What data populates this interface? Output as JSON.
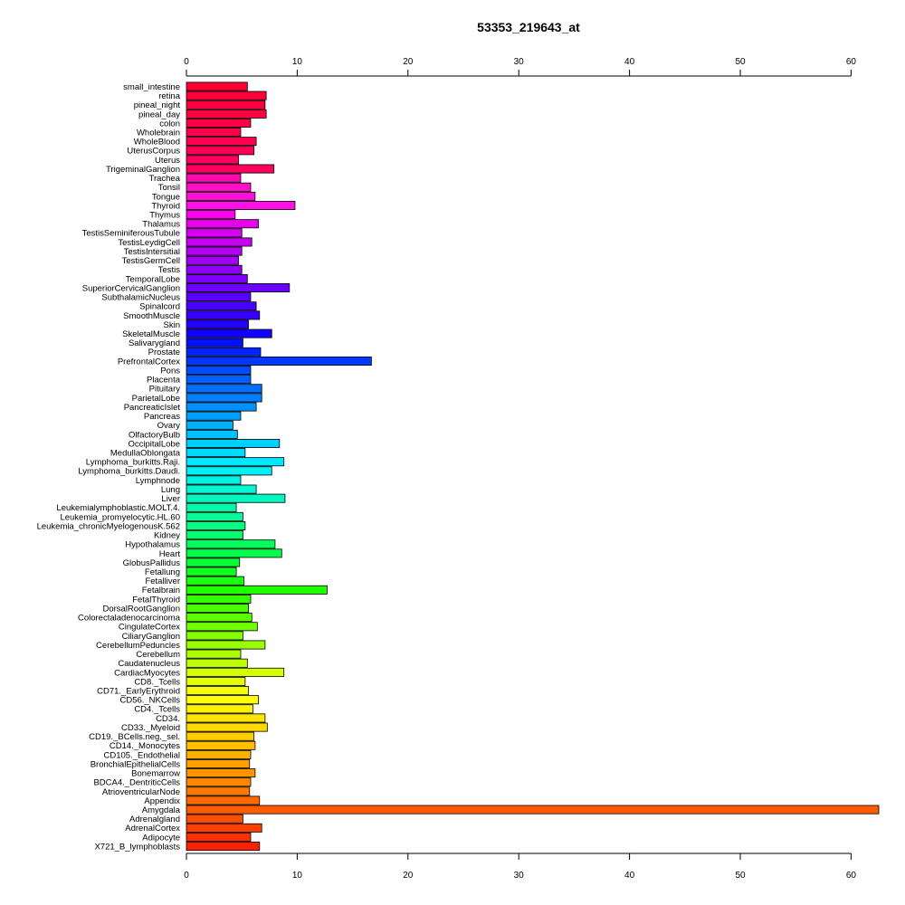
{
  "chart_data": {
    "type": "bar",
    "orientation": "horizontal",
    "title": "53353_219643_at",
    "xlabel": "",
    "ylabel": "",
    "xlim": [
      0,
      62.5
    ],
    "xticks": [
      0,
      10,
      20,
      30,
      40,
      50,
      60
    ],
    "xtick_labels": [
      "0",
      "10",
      "20",
      "30",
      "40",
      "50",
      "60"
    ],
    "grid": false,
    "categories": [
      "small_intestine",
      "retina",
      "pineal_night",
      "pineal_day",
      "colon",
      "Wholebrain",
      "WholeBlood",
      "UterusCorpus",
      "Uterus",
      "TrigeminalGanglion",
      "Trachea",
      "Tonsil",
      "Tongue",
      "Thyroid",
      "Thymus",
      "Thalamus",
      "TestisSeminiferousTubule",
      "TestisLeydigCell",
      "TestisIntersitial",
      "TestisGermCell",
      "Testis",
      "TemporalLobe",
      "SuperiorCervicalGanglion",
      "SubthalamicNucleus",
      "Spinalcord",
      "SmoothMuscle",
      "Skin",
      "SkeletalMuscle",
      "Salivarygland",
      "Prostate",
      "PrefrontalCortex",
      "Pons",
      "Placenta",
      "Pituitary",
      "ParietalLobe",
      "PancreaticIslet",
      "Pancreas",
      "Ovary",
      "OlfactoryBulb",
      "OccipitalLobe",
      "MedullaOblongata",
      "Lymphoma_burkitts.Raji.",
      "Lymphoma_burkitts.Daudi.",
      "Lymphnode",
      "Lung",
      "Liver",
      "Leukemialymphoblastic.MOLT.4.",
      "Leukemia_promyelocytic.HL.60",
      "Leukemia_chronicMyelogenousK.562",
      "Kidney",
      "Hypothalamus",
      "Heart",
      "GlobusPallidus",
      "Fetallung",
      "Fetalliver",
      "Fetalbrain",
      "FetalThyroid",
      "DorsalRootGanglion",
      "Colorectaladenocarcinoma",
      "CingulateCortex",
      "CiliaryGanglion",
      "CerebellumPeduncles",
      "Cerebellum",
      "Caudatenucleus",
      "CardiacMyocytes",
      "CD8._Tcells",
      "CD71._EarlyErythroid",
      "CD56._NKCells",
      "CD4._Tcells",
      "CD34.",
      "CD33._Myeloid",
      "CD19._BCells.neg._sel.",
      "CD14._Monocytes",
      "CD105._Endothelial",
      "BronchialEpithelialCells",
      "Bonemarrow",
      "BDCA4._DentriticCells",
      "AtrioventricularNode",
      "Appendix",
      "Amygdala",
      "Adrenalgland",
      "AdrenalCortex",
      "Adipocyte",
      "X721_B_lymphoblasts"
    ],
    "values": [
      5.5,
      7.2,
      7.1,
      7.2,
      5.8,
      4.9,
      6.3,
      6.1,
      4.7,
      7.9,
      4.9,
      5.8,
      6.2,
      9.8,
      4.4,
      6.5,
      5.0,
      5.9,
      5.0,
      4.7,
      5.0,
      5.5,
      9.3,
      5.8,
      6.3,
      6.6,
      5.6,
      7.7,
      5.1,
      6.7,
      16.7,
      5.8,
      5.8,
      6.8,
      6.8,
      6.3,
      4.9,
      4.2,
      4.6,
      8.4,
      5.3,
      8.8,
      7.7,
      4.9,
      6.3,
      8.9,
      4.5,
      5.1,
      5.3,
      5.1,
      8.0,
      8.6,
      4.8,
      4.5,
      5.2,
      12.7,
      5.8,
      5.6,
      5.9,
      6.4,
      5.1,
      7.1,
      4.9,
      5.5,
      8.8,
      5.3,
      5.6,
      6.5,
      6.0,
      7.1,
      7.3,
      6.1,
      6.2,
      5.8,
      5.7,
      6.2,
      5.8,
      5.7,
      6.6,
      62.5,
      5.1,
      6.8,
      5.8,
      6.6
    ],
    "colors": [
      "#FF0033",
      "#FF0038",
      "#FF003D",
      "#FF0041",
      "#FF0046",
      "#FF004B",
      "#FF0050",
      "#FF0055",
      "#FF005A",
      "#FF005F",
      "#FF0AB0",
      "#FF10C8",
      "#FF10D8",
      "#FF10E6",
      "#FE00F0",
      "#E800EE",
      "#D700F0",
      "#C600F2",
      "#B400F4",
      "#A200F6",
      "#9000F8",
      "#7E00FA",
      "#6C00FC",
      "#5A00FE",
      "#4800FF",
      "#3600FF",
      "#2400FF",
      "#1200FF",
      "#0010FF",
      "#0024FF",
      "#0038FF",
      "#004CFF",
      "#0060FF",
      "#0070FF",
      "#0080FF",
      "#0090FF",
      "#00A0FF",
      "#00B0FF",
      "#00C0FF",
      "#00D0FF",
      "#00DCFF",
      "#00E8FF",
      "#00F0F4",
      "#00F4E4",
      "#00F6D4",
      "#00F8C0",
      "#00FAAC",
      "#00FC98",
      "#00FE84",
      "#00FF70",
      "#00FF5C",
      "#00FF48",
      "#08FF34",
      "#10FF20",
      "#18FF10",
      "#20FF00",
      "#34FF00",
      "#48FF00",
      "#5CFF00",
      "#70FF00",
      "#84FF00",
      "#98FF00",
      "#ACFF00",
      "#C0FF00",
      "#D4FF00",
      "#E6FF00",
      "#F4FF00",
      "#FFFF00",
      "#FFF000",
      "#FFE400",
      "#FFD800",
      "#FFCC00",
      "#FFBE00",
      "#FFB000",
      "#FFA200",
      "#FF9400",
      "#FF8600",
      "#FF7800",
      "#FF6A00",
      "#FF5C00",
      "#FF4E00",
      "#FF4000",
      "#FF3000",
      "#FF2000"
    ]
  }
}
